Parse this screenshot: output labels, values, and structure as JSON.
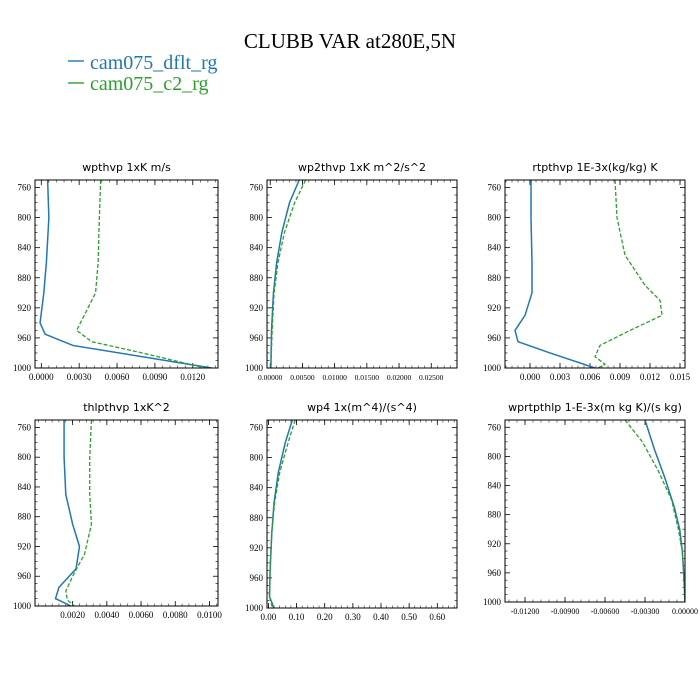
{
  "figure": {
    "title": "CLUBB VAR at280E,5N"
  },
  "legend": [
    {
      "label": "cam075_dflt_rg",
      "color": "#1f77b4",
      "style": "solid"
    },
    {
      "label": "cam075_c2_rg",
      "color": "#2ca02c",
      "style": "dashed"
    }
  ],
  "chart_data": [
    {
      "type": "line",
      "title": "wpthvp  1xK m/s",
      "xlim": [
        -0.0005,
        0.014
      ],
      "ylim": [
        1000,
        750
      ],
      "xticks": [
        0.0,
        0.003,
        0.006,
        0.009,
        0.012
      ],
      "xtick_labels": [
        "0.0000",
        "0.0030",
        "0.0060",
        "0.0090",
        "0.0120"
      ],
      "yticks": [
        760,
        800,
        840,
        880,
        920,
        960,
        1000
      ],
      "ytick_labels": [
        "760",
        "800",
        "840",
        "880",
        "920",
        "960",
        "1000"
      ],
      "series": [
        {
          "name": "cam075_dflt_rg",
          "x": [
            0.0005,
            0.0006,
            0.0004,
            0.0002,
            -0.0001,
            0.0003,
            0.0025,
            0.0135
          ],
          "y": [
            750,
            800,
            860,
            900,
            940,
            955,
            970,
            1000
          ]
        },
        {
          "name": "cam075_c2_rg",
          "x": [
            0.0047,
            0.0046,
            0.0045,
            0.0043,
            0.0034,
            0.0028,
            0.004,
            0.008,
            0.013
          ],
          "y": [
            750,
            800,
            860,
            900,
            930,
            950,
            965,
            980,
            1000
          ]
        }
      ]
    },
    {
      "type": "line",
      "title": "wp2thvp  1xK m^2/s^2",
      "xlim": [
        -0.0005,
        0.029
      ],
      "ylim": [
        1000,
        750
      ],
      "xticks": [
        0.0,
        0.005,
        0.01,
        0.015,
        0.02,
        0.025
      ],
      "xtick_labels": [
        "0.00000",
        "0.00500",
        "0.01000",
        "0.01500",
        "0.02000",
        "0.02500"
      ],
      "yticks": [
        760,
        800,
        840,
        880,
        920,
        960,
        1000
      ],
      "ytick_labels": [
        "760",
        "800",
        "840",
        "880",
        "920",
        "960",
        "1000"
      ],
      "series": [
        {
          "name": "cam075_dflt_rg",
          "x": [
            0.0045,
            0.003,
            0.0018,
            0.001,
            0.0005,
            0.0002,
            0.0001
          ],
          "y": [
            750,
            780,
            820,
            860,
            900,
            950,
            1000
          ]
        },
        {
          "name": "cam075_c2_rg",
          "x": [
            0.0055,
            0.0038,
            0.0022,
            0.0012,
            0.0006,
            0.0003,
            0.0001
          ],
          "y": [
            750,
            780,
            820,
            860,
            900,
            950,
            1000
          ]
        }
      ]
    },
    {
      "type": "line",
      "title": "rtpthvp  1E-3x(kg/kg) K",
      "xlim": [
        -0.0025,
        0.0155
      ],
      "ylim": [
        1000,
        750
      ],
      "xticks": [
        0.0,
        0.003,
        0.006,
        0.009,
        0.012,
        0.015
      ],
      "xtick_labels": [
        "0.000",
        "0.003",
        "0.006",
        "0.009",
        "0.012",
        "0.015"
      ],
      "yticks": [
        760,
        800,
        840,
        880,
        920,
        960,
        1000
      ],
      "ytick_labels": [
        "760",
        "800",
        "840",
        "880",
        "920",
        "960",
        "1000"
      ],
      "series": [
        {
          "name": "cam075_dflt_rg",
          "x": [
            0.0001,
            0.0001,
            0.0002,
            0.0002,
            -0.0005,
            -0.0015,
            -0.0012,
            0.002,
            0.0065
          ],
          "y": [
            750,
            800,
            860,
            900,
            930,
            950,
            965,
            980,
            1000
          ]
        },
        {
          "name": "cam075_c2_rg",
          "x": [
            0.0085,
            0.0087,
            0.0095,
            0.0115,
            0.013,
            0.0132,
            0.01,
            0.007,
            0.0065,
            0.0075,
            0.0068
          ],
          "y": [
            750,
            800,
            850,
            890,
            910,
            930,
            950,
            970,
            985,
            995,
            1000
          ]
        }
      ]
    },
    {
      "type": "line",
      "title": "thlpthvp  1xK^2",
      "xlim": [
        -0.0002,
        0.0105
      ],
      "ylim": [
        1000,
        750
      ],
      "xticks": [
        0.002,
        0.004,
        0.006,
        0.008,
        0.01
      ],
      "xtick_labels": [
        "0.0020",
        "0.0040",
        "0.0060",
        "0.0080",
        "0.0100"
      ],
      "yticks": [
        760,
        800,
        840,
        880,
        920,
        960,
        1000
      ],
      "ytick_labels": [
        "760",
        "800",
        "840",
        "880",
        "920",
        "960",
        "1000"
      ],
      "series": [
        {
          "name": "cam075_dflt_rg",
          "x": [
            0.0015,
            0.0015,
            0.0016,
            0.002,
            0.0024,
            0.0022,
            0.0012,
            0.001,
            0.0019
          ],
          "y": [
            750,
            800,
            850,
            890,
            920,
            950,
            975,
            990,
            1000
          ]
        },
        {
          "name": "cam075_c2_rg",
          "x": [
            0.0031,
            0.003,
            0.003,
            0.0031,
            0.0027,
            0.002,
            0.0016,
            0.0017,
            0.0021
          ],
          "y": [
            750,
            800,
            850,
            890,
            930,
            960,
            980,
            992,
            1000
          ]
        }
      ]
    },
    {
      "type": "line",
      "title": "wp4  1x(m^4)/(s^4)",
      "xlim": [
        -0.005,
        0.67
      ],
      "ylim": [
        1000,
        750
      ],
      "xticks": [
        0.0,
        0.1,
        0.2,
        0.3,
        0.4,
        0.5,
        0.6
      ],
      "xtick_labels": [
        "0.00",
        "0.10",
        "0.20",
        "0.30",
        "0.40",
        "0.50",
        "0.60"
      ],
      "yticks": [
        760,
        800,
        840,
        880,
        920,
        960,
        1000
      ],
      "ytick_labels": [
        "760",
        "800",
        "840",
        "880",
        "920",
        "960",
        "1000"
      ],
      "series": [
        {
          "name": "cam075_dflt_rg",
          "x": [
            0.085,
            0.06,
            0.035,
            0.02,
            0.012,
            0.006,
            0.004,
            0.02
          ],
          "y": [
            750,
            780,
            820,
            860,
            900,
            950,
            985,
            1000
          ]
        },
        {
          "name": "cam075_c2_rg",
          "x": [
            0.095,
            0.07,
            0.04,
            0.022,
            0.012,
            0.006,
            0.004,
            0.015
          ],
          "y": [
            750,
            780,
            820,
            860,
            900,
            950,
            985,
            1000
          ]
        }
      ]
    },
    {
      "type": "line",
      "title": "wprtpthlp  1-E-3x(m kg K)/(s kg)",
      "xlim": [
        -0.0135,
        0.0
      ],
      "ylim": [
        1000,
        750
      ],
      "xticks": [
        -0.012,
        -0.009,
        -0.006,
        -0.003,
        0.0
      ],
      "xtick_labels": [
        "-0.01200",
        "-0.00900",
        "-0.00600",
        "-0.00300",
        "0.00000"
      ],
      "yticks": [
        760,
        800,
        840,
        880,
        920,
        960,
        1000
      ],
      "ytick_labels": [
        "760",
        "800",
        "840",
        "880",
        "920",
        "960",
        "1000"
      ],
      "series": [
        {
          "name": "cam075_dflt_rg",
          "x": [
            -0.003,
            -0.0023,
            -0.0015,
            -0.0008,
            -0.0004,
            -0.0002,
            -0.0001,
            0.0
          ],
          "y": [
            750,
            790,
            830,
            870,
            900,
            930,
            960,
            1000
          ]
        },
        {
          "name": "cam075_c2_rg",
          "x": [
            -0.0045,
            -0.0032,
            -0.002,
            -0.001,
            -0.0005,
            -0.0002,
            -0.0001,
            0.0
          ],
          "y": [
            750,
            780,
            820,
            860,
            900,
            930,
            960,
            1000
          ]
        }
      ]
    }
  ]
}
